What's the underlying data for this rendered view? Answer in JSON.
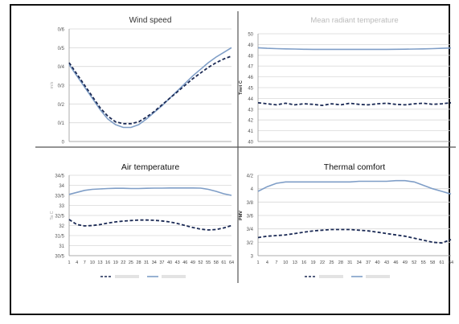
{
  "chart_data": [
    {
      "type": "line",
      "title": "Wind speed",
      "ylabel": "m/s",
      "yticks": [
        "0",
        "0/1",
        "0/2",
        "0/3",
        "0/4",
        "0/5",
        "0/6"
      ],
      "ylim": [
        0,
        0.6
      ],
      "x": [
        1,
        4,
        7,
        10,
        13,
        16,
        19,
        22,
        25,
        28,
        31,
        34,
        37,
        40,
        43,
        46,
        49,
        52,
        55,
        58,
        61,
        64
      ],
      "series": [
        {
          "style": "solid",
          "color": "#7f9ec7",
          "values": [
            0.41,
            0.35,
            0.29,
            0.23,
            0.17,
            0.12,
            0.09,
            0.075,
            0.075,
            0.09,
            0.12,
            0.155,
            0.19,
            0.23,
            0.27,
            0.31,
            0.35,
            0.385,
            0.42,
            0.45,
            0.475,
            0.5
          ]
        },
        {
          "style": "dashed",
          "color": "#1b2a55",
          "values": [
            0.42,
            0.36,
            0.3,
            0.24,
            0.18,
            0.135,
            0.105,
            0.095,
            0.095,
            0.105,
            0.13,
            0.16,
            0.195,
            0.23,
            0.265,
            0.3,
            0.335,
            0.365,
            0.395,
            0.42,
            0.44,
            0.455
          ]
        }
      ],
      "grid": true
    },
    {
      "type": "line",
      "title": "Mean radiant temperature",
      "ylabel": "Tmrt C",
      "yticks": [
        "40",
        "41",
        "42",
        "43",
        "44",
        "45",
        "46",
        "47",
        "48",
        "49",
        "50"
      ],
      "ylim": [
        40,
        50
      ],
      "x": [
        1,
        4,
        7,
        10,
        13,
        16,
        19,
        22,
        25,
        28,
        31,
        34,
        37,
        40,
        43,
        46,
        49,
        52,
        55,
        58,
        61,
        64
      ],
      "series": [
        {
          "style": "solid",
          "color": "#7f9ec7",
          "values": [
            48.7,
            48.65,
            48.62,
            48.6,
            48.58,
            48.56,
            48.55,
            48.55,
            48.55,
            48.55,
            48.55,
            48.55,
            48.55,
            48.55,
            48.55,
            48.56,
            48.57,
            48.58,
            48.6,
            48.62,
            48.65,
            48.68
          ]
        },
        {
          "style": "dashed",
          "color": "#1b2a55",
          "values": [
            43.6,
            43.5,
            43.4,
            43.55,
            43.4,
            43.5,
            43.45,
            43.35,
            43.5,
            43.4,
            43.55,
            43.45,
            43.4,
            43.5,
            43.55,
            43.45,
            43.4,
            43.5,
            43.55,
            43.45,
            43.5,
            43.6
          ]
        }
      ],
      "grid": true
    },
    {
      "type": "line",
      "title": "Air temperature",
      "ylabel": "Ta C",
      "yticks": [
        "30/5",
        "31",
        "31/5",
        "32",
        "32/5",
        "33",
        "33/5",
        "34",
        "34/5"
      ],
      "ylim": [
        30.5,
        34.5
      ],
      "xticks": [
        "1",
        "4",
        "7",
        "10",
        "13",
        "16",
        "19",
        "22",
        "25",
        "28",
        "31",
        "34",
        "37",
        "40",
        "43",
        "46",
        "49",
        "52",
        "55",
        "58",
        "61",
        "64"
      ],
      "x": [
        1,
        4,
        7,
        10,
        13,
        16,
        19,
        22,
        25,
        28,
        31,
        34,
        37,
        40,
        43,
        46,
        49,
        52,
        55,
        58,
        61,
        64
      ],
      "series": [
        {
          "style": "solid",
          "color": "#7f9ec7",
          "values": [
            33.55,
            33.65,
            33.75,
            33.8,
            33.82,
            33.84,
            33.85,
            33.85,
            33.84,
            33.84,
            33.85,
            33.86,
            33.86,
            33.87,
            33.87,
            33.87,
            33.87,
            33.86,
            33.8,
            33.7,
            33.58,
            33.5
          ]
        },
        {
          "style": "dashed",
          "color": "#1b2a55",
          "values": [
            32.3,
            32.05,
            31.98,
            32.0,
            32.05,
            32.12,
            32.18,
            32.22,
            32.25,
            32.27,
            32.27,
            32.26,
            32.23,
            32.18,
            32.1,
            32.0,
            31.9,
            31.82,
            31.78,
            31.8,
            31.88,
            32.0
          ]
        }
      ],
      "legend": {
        "position": "bottom"
      },
      "grid": true
    },
    {
      "type": "line",
      "title": "Thermal comfort",
      "ylabel": "PMV",
      "yticks": [
        "3",
        "3/2",
        "3/4",
        "3/6",
        "3/8",
        "4",
        "4/2"
      ],
      "ylim": [
        3,
        4.2
      ],
      "xticks": [
        "1",
        "4",
        "7",
        "10",
        "13",
        "16",
        "19",
        "22",
        "25",
        "28",
        "31",
        "34",
        "37",
        "40",
        "43",
        "46",
        "49",
        "52",
        "55",
        "58",
        "61",
        "64"
      ],
      "x": [
        1,
        4,
        7,
        10,
        13,
        16,
        19,
        22,
        25,
        28,
        31,
        34,
        37,
        40,
        43,
        46,
        49,
        52,
        55,
        58,
        61,
        64
      ],
      "series": [
        {
          "style": "solid",
          "color": "#7f9ec7",
          "values": [
            3.96,
            4.03,
            4.08,
            4.1,
            4.1,
            4.1,
            4.1,
            4.1,
            4.1,
            4.1,
            4.1,
            4.11,
            4.11,
            4.11,
            4.11,
            4.12,
            4.12,
            4.1,
            4.05,
            4.0,
            3.96,
            3.92
          ]
        },
        {
          "style": "dashed",
          "color": "#1b2a55",
          "values": [
            3.27,
            3.29,
            3.3,
            3.31,
            3.33,
            3.35,
            3.37,
            3.38,
            3.39,
            3.39,
            3.39,
            3.38,
            3.37,
            3.35,
            3.33,
            3.31,
            3.29,
            3.26,
            3.23,
            3.2,
            3.19,
            3.24
          ]
        }
      ],
      "legend": {
        "position": "bottom"
      },
      "grid": true
    }
  ]
}
